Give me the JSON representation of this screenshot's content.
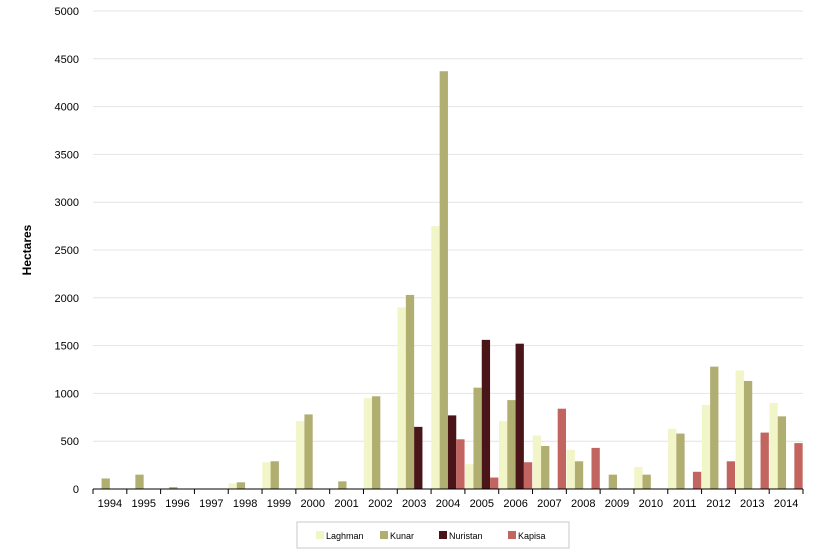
{
  "chart_data": {
    "type": "bar",
    "ylabel": "Hectares",
    "xlabel": "",
    "ylim": [
      0,
      5000
    ],
    "yticks": [
      0,
      500,
      1000,
      1500,
      2000,
      2500,
      3000,
      3500,
      4000,
      4500,
      5000
    ],
    "grid": true,
    "legend_position": "bottom",
    "categories": [
      "1994",
      "1995",
      "1996",
      "1997",
      "1998",
      "1999",
      "2000",
      "2001",
      "2002",
      "2003",
      "2004",
      "2005",
      "2006",
      "2007",
      "2008",
      "2009",
      "2010",
      "2011",
      "2012",
      "2013",
      "2014"
    ],
    "series": [
      {
        "name": "Laghman",
        "color": "#f2f5c8",
        "values": [
          0,
          0,
          0,
          0,
          60,
          280,
          710,
          0,
          950,
          1900,
          2750,
          260,
          710,
          560,
          410,
          0,
          230,
          630,
          880,
          1240,
          900
        ]
      },
      {
        "name": "Kunar",
        "color": "#b1ae72",
        "values": [
          110,
          150,
          20,
          0,
          70,
          290,
          780,
          80,
          970,
          2030,
          4370,
          1060,
          930,
          450,
          290,
          150,
          150,
          580,
          1280,
          1130,
          760
        ]
      },
      {
        "name": "Nuristan",
        "color": "#4a1518",
        "values": [
          0,
          0,
          0,
          0,
          0,
          0,
          0,
          0,
          0,
          650,
          770,
          1560,
          1520,
          0,
          0,
          0,
          0,
          0,
          0,
          0,
          0
        ]
      },
      {
        "name": "Kapisa",
        "color": "#c2645f",
        "values": [
          0,
          0,
          0,
          0,
          0,
          0,
          0,
          0,
          0,
          0,
          520,
          120,
          280,
          840,
          430,
          0,
          0,
          180,
          290,
          590,
          480
        ]
      }
    ]
  }
}
